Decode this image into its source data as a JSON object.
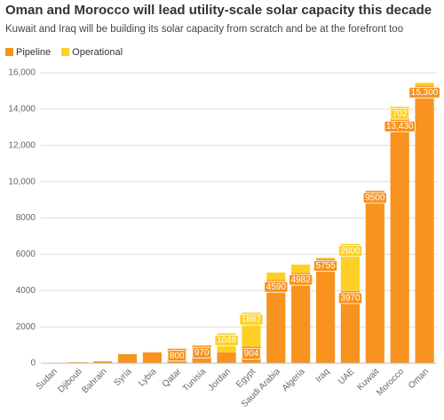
{
  "chart_data": {
    "type": "stacked_bar",
    "title": "Oman and Morocco will lead utility-scale solar capacity this decade",
    "subtitle": "Kuwait and Iraq will be building its solar capacity from scratch and be at the forefront too",
    "categories": [
      "Sudan",
      "Djibouti",
      "Bahrain",
      "Syria",
      "Lybia",
      "Qatar",
      "Tunisia",
      "Jordan",
      "Egypt",
      "Saudi Arabia",
      "Algeria",
      "Iraq",
      "UAE",
      "Kuwait",
      "Morocco",
      "Oman"
    ],
    "series": [
      {
        "name": "Pipeline",
        "color": "#f7931e",
        "values": [
          20,
          50,
          100,
          500,
          600,
          800,
          970,
          600,
          904,
          4590,
          4982,
          5755,
          3970,
          9500,
          13430,
          15300
        ],
        "value_labels": [
          null,
          null,
          null,
          null,
          null,
          "800",
          "970",
          null,
          "904",
          "4590",
          "4982",
          "5755",
          "3970",
          "9500",
          "13,430",
          "15,300"
        ]
      },
      {
        "name": "Operational",
        "color": "#fdd023",
        "values": [
          0,
          0,
          0,
          0,
          0,
          0,
          0,
          1048,
          1882,
          400,
          450,
          50,
          2600,
          0,
          702,
          150
        ],
        "value_labels": [
          null,
          null,
          null,
          null,
          null,
          null,
          null,
          "1048",
          "1882",
          null,
          null,
          null,
          "2600",
          null,
          "702",
          null
        ]
      }
    ],
    "ylim": [
      0,
      16000
    ],
    "yticks": [
      0,
      2000,
      4000,
      6000,
      8000,
      {
        "value": 10000,
        "label": "10,000"
      },
      {
        "value": 12000,
        "label": "12,000"
      },
      {
        "value": 14000,
        "label": "14,000"
      },
      {
        "value": 16000,
        "label": "16,000"
      }
    ],
    "grid": true,
    "legend": "top-left"
  }
}
